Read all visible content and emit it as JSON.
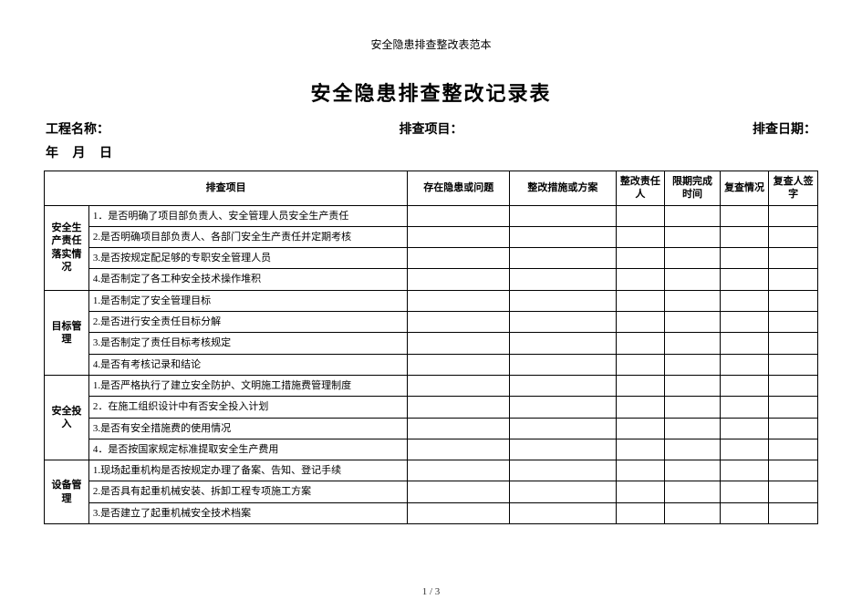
{
  "doc_subtitle": "安全隐患排查整改表范本",
  "doc_title": "安全隐患排查整改记录表",
  "meta": {
    "project_label": "工程名称：",
    "inspect_item_label": "排查项目：",
    "inspect_date_label": "排查日期：",
    "date_line": "年 月 日"
  },
  "headers": {
    "category_spanned": "排查项目",
    "issue": "存在隐患或问题",
    "plan": "整改措施或方案",
    "responsible": "整改责任人",
    "deadline": "限期完成时间",
    "review": "复查情况",
    "reviewer_sign": "复查人签字"
  },
  "sections": [
    {
      "category": "安全生产责任落实情况",
      "items": [
        "1．是否明确了项目部负责人、安全管理人员安全生产责任",
        "2.是否明确项目部负责人、各部门安全生产责任并定期考核",
        "3.是否按规定配足够的专职安全管理人员",
        "4.是否制定了各工种安全技术操作堆积"
      ]
    },
    {
      "category": "目标管理",
      "items": [
        "1.是否制定了安全管理目标",
        "2.是否进行安全责任目标分解",
        "3.是否制定了责任目标考核规定",
        "4.是否有考核记录和结论"
      ]
    },
    {
      "category": "安全投入",
      "items": [
        "1.是否严格执行了建立安全防护、文明施工措施费管理制度",
        "2．在施工组织设计中有否安全投入计划",
        "3.是否有安全措施费的使用情况",
        "4．是否按国家规定标准提取安全生产费用"
      ]
    },
    {
      "category": "设备管理",
      "items": [
        "1.现场起重机构是否按规定办理了备案、告知、登记手续",
        "2.是否具有起重机械安装、拆卸工程专项施工方案",
        "3.是否建立了起重机械安全技术档案"
      ]
    }
  ],
  "page_number": "1 / 3"
}
